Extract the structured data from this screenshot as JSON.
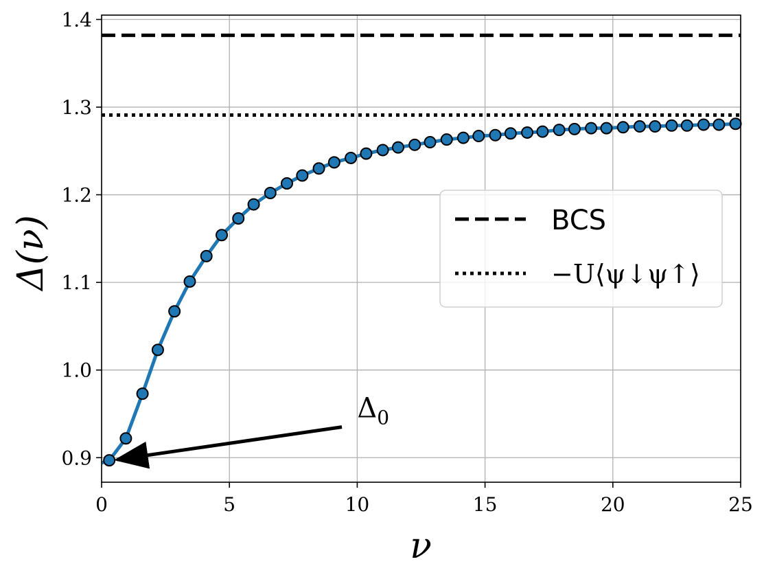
{
  "chart_data": {
    "type": "line",
    "xlabel": "ν",
    "ylabel": "Δ(ν)",
    "xlim": [
      0,
      25
    ],
    "ylim": [
      0.872,
      1.405
    ],
    "xticks": [
      0,
      5,
      10,
      15,
      20,
      25
    ],
    "xtick_labels": [
      "0",
      "5",
      "10",
      "15",
      "20",
      "25"
    ],
    "yticks": [
      0.9,
      1.0,
      1.1,
      1.2,
      1.3,
      1.4
    ],
    "ytick_labels": [
      "0.9",
      "1.0",
      "1.1",
      "1.2",
      "1.3",
      "1.4"
    ],
    "grid": true,
    "legend_position": "center-right",
    "series": [
      {
        "style": "solid line with circle markers",
        "color": "#1f77b4",
        "x": [
          0.3,
          0.95,
          1.6,
          2.2,
          2.85,
          3.45,
          4.1,
          4.7,
          5.35,
          5.95,
          6.6,
          7.25,
          7.85,
          8.5,
          9.1,
          9.75,
          10.35,
          11.0,
          11.6,
          12.25,
          12.85,
          13.5,
          14.15,
          14.75,
          15.4,
          16.0,
          16.65,
          17.25,
          17.9,
          18.5,
          19.15,
          19.75,
          20.4,
          21.05,
          21.65,
          22.3,
          22.9,
          23.55,
          24.15,
          24.8
        ],
        "y": [
          0.897,
          0.922,
          0.973,
          1.023,
          1.067,
          1.101,
          1.13,
          1.154,
          1.173,
          1.189,
          1.202,
          1.213,
          1.222,
          1.23,
          1.237,
          1.242,
          1.247,
          1.251,
          1.254,
          1.257,
          1.26,
          1.263,
          1.265,
          1.267,
          1.268,
          1.27,
          1.271,
          1.272,
          1.274,
          1.275,
          1.276,
          1.276,
          1.277,
          1.278,
          1.278,
          1.279,
          1.279,
          1.28,
          1.28,
          1.281
        ]
      },
      {
        "name": "BCS",
        "style": "dashed",
        "color": "#000000",
        "y_const": 1.382
      },
      {
        "name": "−U⟨ψ↓ψ↑⟩",
        "style": "dotted",
        "color": "#000000",
        "y_const": 1.291
      }
    ],
    "annotations": [
      {
        "text": "Δ0",
        "text_main": "Δ",
        "text_sub": "0",
        "text_at": [
          10.0,
          0.95
        ],
        "arrow_from": [
          9.4,
          0.935
        ],
        "arrow_to": [
          0.45,
          0.897
        ]
      }
    ],
    "colors": {
      "line": "#1f77b4",
      "marker_edge": "#000000",
      "grid": "#b0b0b0"
    }
  }
}
